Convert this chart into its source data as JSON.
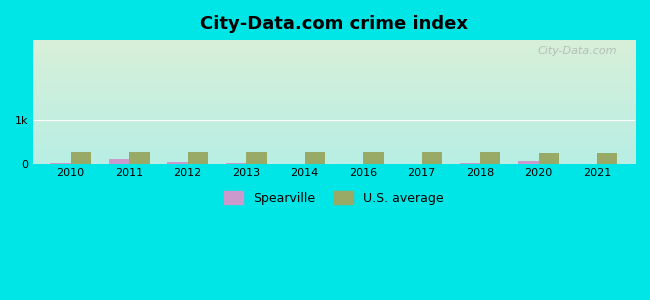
{
  "title": "City-Data.com crime index",
  "years": [
    2010,
    2011,
    2012,
    2013,
    2014,
    2016,
    2017,
    2018,
    2020,
    2021
  ],
  "spearville": [
    20,
    120,
    55,
    25,
    10,
    5,
    5,
    30,
    80,
    5
  ],
  "us_average": [
    270,
    265,
    270,
    280,
    265,
    280,
    265,
    265,
    260,
    255
  ],
  "spearville_color": "#cc99cc",
  "us_average_color": "#99aa66",
  "background_outer": "#00e5e5",
  "background_inner_top": "#d8f0d8",
  "background_inner_bottom": "#b8eee4",
  "ylim": [
    0,
    2800
  ],
  "ytick_label": "1k",
  "ytick_value": 1000,
  "bar_width": 0.35,
  "title_fontsize": 13,
  "legend_label_spearville": "Spearville",
  "legend_label_us": "U.S. average",
  "watermark": "City-Data.com"
}
